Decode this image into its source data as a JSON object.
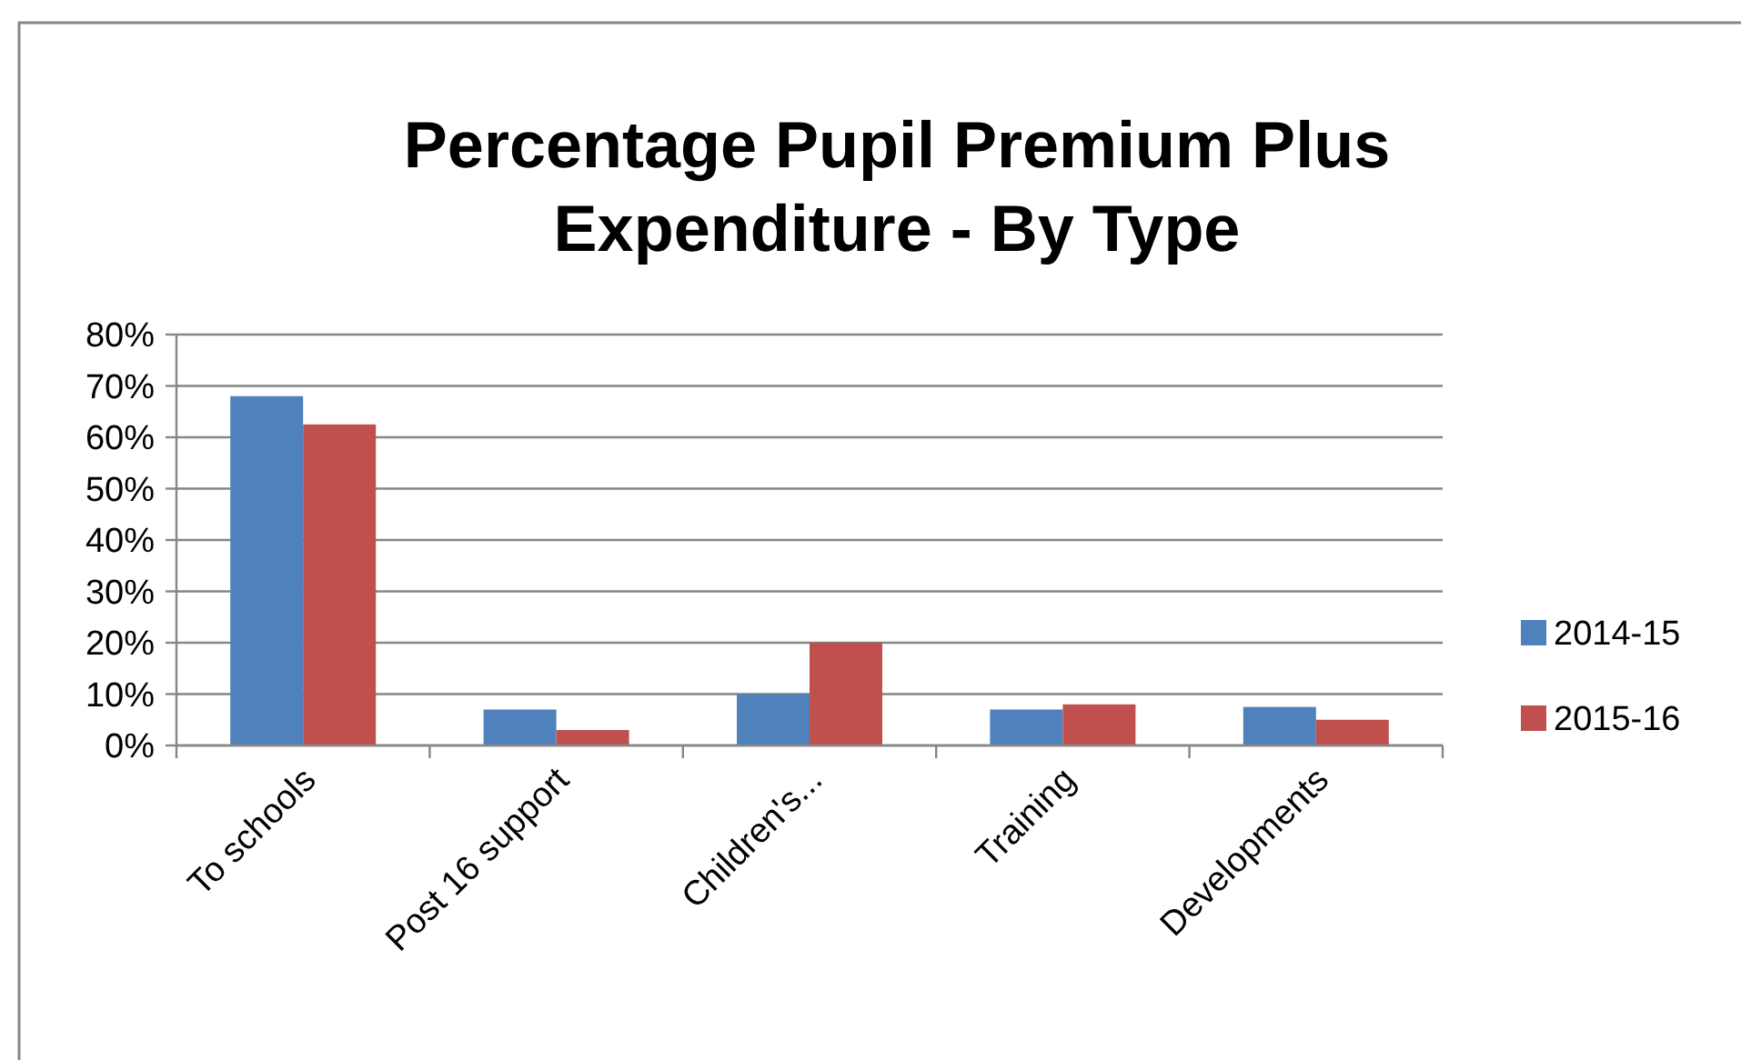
{
  "chart_data": {
    "type": "bar",
    "title": "Percentage Pupil Premium Plus Expenditure - By Type",
    "categories": [
      "To schools",
      "Post 16 support",
      "Children's...",
      "Training",
      "Developments"
    ],
    "series": [
      {
        "name": "2014-15",
        "color": "#4f81bd",
        "values": [
          68,
          7,
          10,
          7,
          7.5
        ]
      },
      {
        "name": "2015-16",
        "color": "#c0504d",
        "values": [
          62.5,
          3,
          20,
          8,
          5
        ]
      }
    ],
    "ylim": [
      0,
      80
    ],
    "yticks": [
      {
        "value": 0,
        "label": "0%"
      },
      {
        "value": 10,
        "label": "10%"
      },
      {
        "value": 20,
        "label": "20%"
      },
      {
        "value": 30,
        "label": "30%"
      },
      {
        "value": 40,
        "label": "40%"
      },
      {
        "value": 50,
        "label": "50%"
      },
      {
        "value": 60,
        "label": "60%"
      },
      {
        "value": 70,
        "label": "70%"
      },
      {
        "value": 80,
        "label": "80%"
      }
    ],
    "grid": "y",
    "legend": "right"
  }
}
